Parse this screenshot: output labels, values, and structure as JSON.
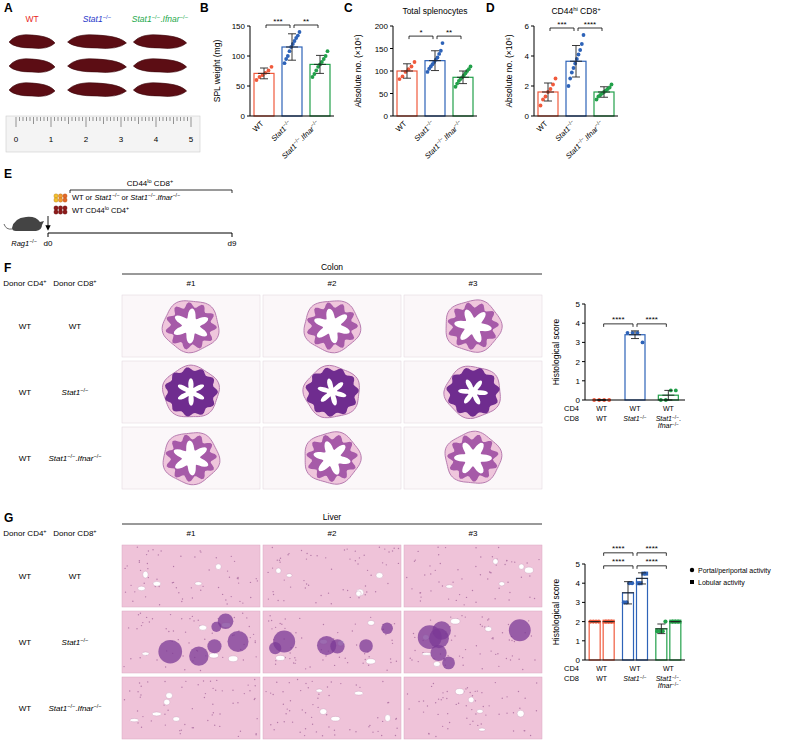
{
  "panel_labels": [
    "A",
    "B",
    "C",
    "D",
    "E",
    "F",
    "G"
  ],
  "panel_a": {
    "genotypes": [
      {
        "label": "WT",
        "color": "#e8261c"
      },
      {
        "label": "Stat1−/−",
        "color": "#2636c9"
      },
      {
        "label": "Stat1−/−.Ifnar−/−",
        "color": "#22a84a"
      }
    ],
    "ruler_labels": [
      0,
      1,
      2,
      3,
      4,
      5
    ]
  },
  "panel_e": {
    "host": "Rag1−/−",
    "cd8_title": "CD44lo CD8+",
    "cd8_donor": "WT or Stat1−/− or Stat1−/−.Ifnar−/−",
    "cd4_donor": "WT CD44lo CD4+",
    "days": [
      "d0",
      "d9"
    ]
  },
  "panel_f": {
    "headers": [
      "Donor CD4+",
      "Donor CD8+"
    ],
    "tissue": "Colon",
    "replicates": [
      "#1",
      "#2",
      "#3"
    ],
    "rows": [
      [
        "WT",
        "WT"
      ],
      [
        "WT",
        "Stat1−/−"
      ],
      [
        "WT",
        "Stat1−/−.Ifnar−/−"
      ]
    ]
  },
  "panel_g": {
    "headers": [
      "Donor CD4+",
      "Donor CD8+"
    ],
    "tissue": "Liver",
    "replicates": [
      "#1",
      "#2",
      "#3"
    ],
    "rows": [
      [
        "WT",
        "WT"
      ],
      [
        "WT",
        "Stat1−/−"
      ],
      [
        "WT",
        "Stat1−/−.Ifnar−/−"
      ]
    ]
  },
  "chart_data": [
    {
      "type": "bar",
      "y_label": "SPL weight (mg)",
      "categories": [
        "WT",
        "Stat1−/−",
        "Stat1−/−.Ifnar−/−"
      ],
      "values": [
        71,
        115,
        86
      ],
      "errors": [
        9,
        22,
        15
      ],
      "points": [
        [
          60,
          65,
          68,
          72,
          76,
          82
        ],
        [
          88,
          95,
          100,
          108,
          115,
          120,
          125,
          130,
          134,
          140
        ],
        [
          65,
          70,
          76,
          82,
          86,
          90,
          95,
          100,
          108
        ]
      ],
      "colors": [
        "#f05a3c",
        "#2e63b8",
        "#22a04a"
      ],
      "ylim": [
        0,
        150
      ],
      "yticks": [
        0,
        50,
        100,
        150
      ],
      "significance": [
        {
          "from": 0,
          "to": 1,
          "label": "***"
        },
        {
          "from": 1,
          "to": 2,
          "label": "**"
        }
      ]
    },
    {
      "type": "bar",
      "title": "Total splenocytes",
      "y_label": "Absolute no. (×10⁶)",
      "categories": [
        "WT",
        "Stat1−/−",
        "Stat1−/−.Ifnar−/−"
      ],
      "values": [
        100,
        123,
        86
      ],
      "errors": [
        16,
        22,
        14
      ],
      "points": [
        [
          82,
          88,
          98,
          104,
          110,
          120
        ],
        [
          98,
          105,
          110,
          115,
          120,
          125,
          130,
          138,
          145,
          162
        ],
        [
          65,
          72,
          78,
          82,
          86,
          90,
          95,
          100,
          104,
          110
        ]
      ],
      "colors": [
        "#f05a3c",
        "#2e63b8",
        "#22a04a"
      ],
      "ylim": [
        0,
        200
      ],
      "yticks": [
        0,
        50,
        100,
        150,
        200
      ],
      "significance": [
        {
          "from": 0,
          "to": 1,
          "label": "*"
        },
        {
          "from": 1,
          "to": 2,
          "label": "**"
        }
      ]
    },
    {
      "type": "bar",
      "title": "CD44hi CD8+",
      "y_label": "Absolute no. (×10⁶)",
      "categories": [
        "WT",
        "Stat1−/−",
        "Stat1−/−.Ifnar−/−"
      ],
      "values": [
        1.6,
        3.65,
        1.6
      ],
      "errors": [
        0.6,
        1.05,
        0.35
      ],
      "points": [
        [
          0.7,
          1.1,
          1.3,
          1.6,
          1.8,
          2.1,
          2.5
        ],
        [
          2.0,
          2.5,
          2.9,
          3.2,
          3.5,
          3.8,
          4.1,
          4.4,
          4.8,
          5.4
        ],
        [
          1.1,
          1.3,
          1.4,
          1.5,
          1.6,
          1.7,
          1.8,
          1.9,
          2.1
        ]
      ],
      "colors": [
        "#f05a3c",
        "#2e63b8",
        "#22a04a"
      ],
      "ylim": [
        0,
        6
      ],
      "yticks": [
        0,
        2,
        4,
        6
      ],
      "significance": [
        {
          "from": 0,
          "to": 1,
          "label": "***"
        },
        {
          "from": 1,
          "to": 2,
          "label": "****"
        }
      ]
    },
    {
      "type": "bar",
      "y_label": "Histological score",
      "row_labels": [
        "CD4",
        "CD8"
      ],
      "cd4_categories": [
        "WT",
        "WT",
        "WT"
      ],
      "categories": [
        "WT",
        "Stat1−/−",
        "Stat1−/−.Ifnar−/−"
      ],
      "values": [
        0,
        3.4,
        0.25
      ],
      "errors": [
        0,
        0.2,
        0.25
      ],
      "points": [
        [
          0,
          0,
          0,
          0
        ],
        [
          3.5,
          3.5,
          3.5,
          3.0
        ],
        [
          0,
          0,
          0.5,
          0.5
        ]
      ],
      "colors": [
        "#f05a3c",
        "#2e63b8",
        "#22a04a"
      ],
      "ylim": [
        0,
        5
      ],
      "yticks": [
        0,
        1,
        2,
        3,
        4,
        5
      ],
      "significance": [
        {
          "from": 0,
          "to": 1,
          "label": "****"
        },
        {
          "from": 1,
          "to": 2,
          "label": "****"
        }
      ]
    },
    {
      "type": "bar",
      "y_label": "Histological score",
      "row_labels": [
        "CD4",
        "CD8"
      ],
      "cd4_categories": [
        "WT",
        "WT",
        "WT"
      ],
      "categories": [
        "WT",
        "Stat1−/−",
        "Stat1−/−.Ifnar−/−"
      ],
      "colors": [
        "#f05a3c",
        "#2e63b8",
        "#22a04a"
      ],
      "legend": "top-right",
      "series": [
        {
          "name": "Portal/periportal activity",
          "marker": "circle",
          "values": [
            2,
            3.5,
            1.625
          ],
          "errors": [
            0,
            0.58,
            0.25
          ],
          "points": [
            [
              2,
              2,
              2,
              2
            ],
            [
              3,
              3,
              4,
              4
            ],
            [
              1.5,
              1.5,
              1.5,
              2
            ]
          ]
        },
        {
          "name": "Lobular activity",
          "marker": "square",
          "values": [
            2,
            4.25,
            2
          ],
          "errors": [
            0,
            0.29,
            0
          ],
          "points": [
            [
              2,
              2,
              2,
              2
            ],
            [
              4,
              4,
              4.5,
              4.5
            ],
            [
              2,
              2,
              2,
              2
            ]
          ]
        }
      ],
      "ylim": [
        0,
        5
      ],
      "yticks": [
        0,
        1,
        2,
        3,
        4,
        5
      ],
      "significance": [
        {
          "from": 0,
          "to": 1,
          "label": "****"
        },
        {
          "from": 1,
          "to": 2,
          "label": "****"
        },
        {
          "from": 0,
          "to": 1,
          "label": "****"
        },
        {
          "from": 1,
          "to": 2,
          "label": "****"
        }
      ]
    }
  ]
}
